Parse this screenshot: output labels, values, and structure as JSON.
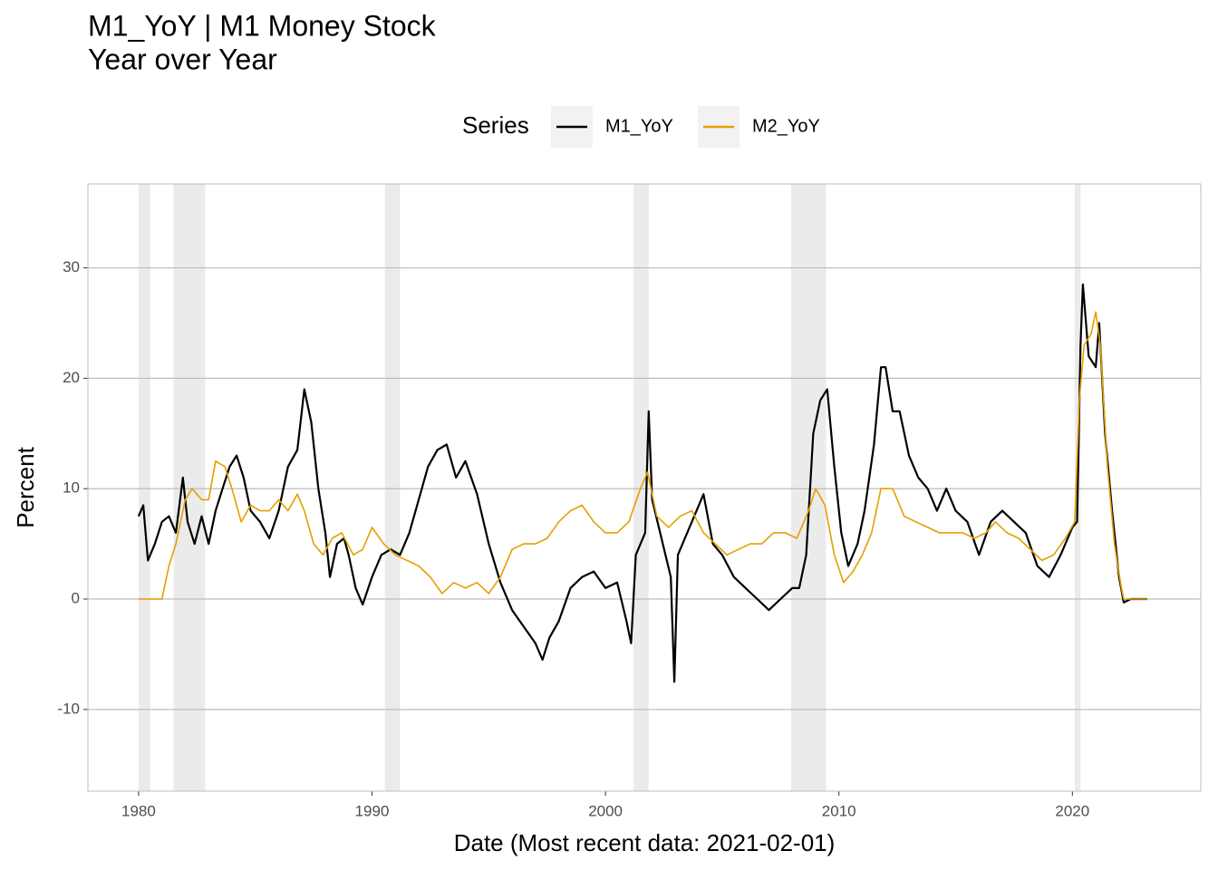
{
  "chart_data": {
    "type": "line",
    "title": "M1_YoY | M1 Money Stock",
    "subtitle": "Year over Year",
    "xlabel": "Date (Most recent data: 2021-02-01)",
    "ylabel": "Percent",
    "legend_title": "Series",
    "legend_position": "top",
    "grid": true,
    "xlim": [
      1977.83,
      2025.5
    ],
    "ylim": [
      -17.4,
      37.6
    ],
    "xticks": [
      1980,
      1990,
      2000,
      2010,
      2020
    ],
    "yticks": [
      -10,
      0,
      10,
      20,
      30
    ],
    "shaded_periods": [
      [
        1980.0,
        1980.5
      ],
      [
        1981.5,
        1982.85
      ],
      [
        1990.55,
        1991.2
      ],
      [
        2001.2,
        2001.85
      ],
      [
        2007.95,
        2009.45
      ],
      [
        2020.1,
        2020.35
      ]
    ],
    "shade_color": "#ebebeb",
    "series": [
      {
        "name": "M1_YoY",
        "color": "#000000",
        "x": [
          1980.0,
          1980.2,
          1980.4,
          1980.7,
          1981.0,
          1981.3,
          1981.6,
          1981.9,
          1982.1,
          1982.4,
          1982.7,
          1983.0,
          1983.3,
          1983.6,
          1983.9,
          1984.2,
          1984.5,
          1984.8,
          1985.2,
          1985.6,
          1986.0,
          1986.4,
          1986.8,
          1987.1,
          1987.4,
          1987.7,
          1988.0,
          1988.2,
          1988.5,
          1988.8,
          1989.0,
          1989.3,
          1989.6,
          1990.0,
          1990.4,
          1990.8,
          1991.2,
          1991.6,
          1992.0,
          1992.4,
          1992.8,
          1993.2,
          1993.6,
          1994.0,
          1994.5,
          1995.0,
          1995.5,
          1996.0,
          1996.5,
          1997.0,
          1997.3,
          1997.6,
          1998.0,
          1998.5,
          1999.0,
          1999.5,
          2000.0,
          2000.5,
          2000.9,
          2001.1,
          2001.3,
          2001.7,
          2001.85,
          2002.0,
          2002.4,
          2002.8,
          2002.95,
          2003.1,
          2003.5,
          2003.9,
          2004.2,
          2004.6,
          2005.0,
          2005.5,
          2006.0,
          2006.5,
          2007.0,
          2007.5,
          2008.0,
          2008.3,
          2008.6,
          2008.9,
          2009.2,
          2009.5,
          2009.8,
          2010.1,
          2010.4,
          2010.8,
          2011.1,
          2011.5,
          2011.8,
          2012.0,
          2012.3,
          2012.6,
          2013.0,
          2013.4,
          2013.8,
          2014.2,
          2014.6,
          2015.0,
          2015.5,
          2016.0,
          2016.5,
          2017.0,
          2017.5,
          2018.0,
          2018.5,
          2019.0,
          2019.5,
          2020.0,
          2020.2,
          2020.35,
          2020.45,
          2020.7,
          2021.0,
          2021.15,
          2021.4,
          2021.7,
          2022.0,
          2022.2,
          2022.5,
          2023.2
        ],
        "values": [
          7.5,
          8.5,
          3.5,
          5,
          7,
          7.5,
          6,
          11,
          7,
          5,
          7.5,
          5,
          8,
          10,
          12,
          13,
          11,
          8,
          7,
          5.5,
          8,
          12,
          13.5,
          19,
          16,
          10,
          6,
          2,
          5,
          5.5,
          4,
          1,
          -0.5,
          2,
          4,
          4.5,
          4,
          6,
          9,
          12,
          13.5,
          14,
          11,
          12.5,
          9.5,
          5,
          1.5,
          -1,
          -2.5,
          -4,
          -5.5,
          -3.5,
          -2,
          1,
          2,
          2.5,
          1,
          1.5,
          -2,
          -4,
          4,
          6,
          17,
          9,
          5.5,
          2,
          -7.5,
          4,
          6,
          8,
          9.5,
          5,
          4,
          2,
          1,
          0,
          -1,
          0,
          1,
          1,
          4,
          15,
          18,
          19,
          12,
          6,
          3,
          5,
          8,
          14,
          21,
          21,
          17,
          17,
          13,
          11,
          10,
          8,
          10,
          8,
          7,
          4,
          7,
          8,
          7,
          6,
          3,
          2,
          4,
          6.5,
          7,
          23,
          28.5,
          22,
          21,
          25,
          15,
          8,
          2,
          -0.3,
          0,
          0
        ]
      },
      {
        "name": "M2_YoY",
        "color": "#e69f00",
        "x": [
          1980.0,
          1981.0,
          1981.3,
          1981.6,
          1982.0,
          1982.3,
          1982.7,
          1983.0,
          1983.3,
          1983.7,
          1984.0,
          1984.4,
          1984.8,
          1985.2,
          1985.6,
          1986.0,
          1986.4,
          1986.8,
          1987.1,
          1987.5,
          1987.9,
          1988.3,
          1988.7,
          1989.2,
          1989.6,
          1990.0,
          1990.5,
          1991.0,
          1991.5,
          1992.0,
          1992.5,
          1993.0,
          1993.5,
          1994.0,
          1994.5,
          1995.0,
          1995.5,
          1996.0,
          1996.5,
          1997.0,
          1997.5,
          1998.0,
          1998.5,
          1999.0,
          1999.5,
          2000.0,
          2000.5,
          2001.0,
          2001.5,
          2001.8,
          2002.2,
          2002.7,
          2003.2,
          2003.7,
          2004.2,
          2004.7,
          2005.2,
          2005.7,
          2006.2,
          2006.7,
          2007.2,
          2007.7,
          2008.2,
          2008.7,
          2009.0,
          2009.4,
          2009.8,
          2010.2,
          2010.6,
          2011.0,
          2011.4,
          2011.8,
          2012.3,
          2012.8,
          2013.3,
          2013.8,
          2014.3,
          2014.8,
          2015.3,
          2015.8,
          2016.3,
          2016.7,
          2017.2,
          2017.7,
          2018.2,
          2018.7,
          2019.2,
          2019.7,
          2020.1,
          2020.3,
          2020.5,
          2020.8,
          2021.0,
          2021.2,
          2021.5,
          2021.8,
          2022.1,
          2022.2,
          2023.2
        ],
        "values": [
          0,
          0,
          3,
          5,
          9,
          10,
          9,
          9,
          12.5,
          12,
          10,
          7,
          8.5,
          8,
          8,
          9,
          8,
          9.5,
          8,
          5,
          4,
          5.5,
          6,
          4,
          4.5,
          6.5,
          5,
          4,
          3.5,
          3,
          2,
          0.5,
          1.5,
          1,
          1.5,
          0.5,
          2,
          4.5,
          5,
          5,
          5.5,
          7,
          8,
          8.5,
          7,
          6,
          6,
          7,
          10,
          11.5,
          7.5,
          6.5,
          7.5,
          8,
          6,
          5,
          4,
          4.5,
          5,
          5,
          6,
          6,
          5.5,
          8,
          10,
          8.5,
          4,
          1.5,
          2.5,
          4,
          6,
          10,
          10,
          7.5,
          7,
          6.5,
          6,
          6,
          6,
          5.5,
          6,
          7,
          6,
          5.5,
          4.5,
          3.5,
          4,
          5.5,
          7,
          18,
          23,
          24,
          26,
          23,
          12,
          5,
          1,
          0,
          0
        ]
      }
    ]
  }
}
